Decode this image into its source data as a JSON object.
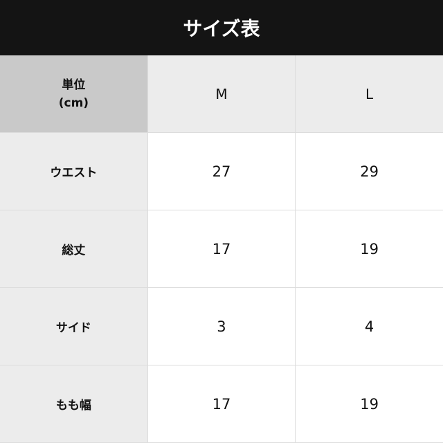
{
  "title": "サイズ表",
  "table": {
    "unit_label": "単位",
    "unit": "(cm)",
    "columns": [
      "M",
      "L"
    ],
    "rows": [
      {
        "label": "ウエスト",
        "values": [
          "27",
          "29"
        ]
      },
      {
        "label": "総丈",
        "values": [
          "17",
          "19"
        ]
      },
      {
        "label": "サイド",
        "values": [
          "3",
          "4"
        ]
      },
      {
        "label": "もも幅",
        "values": [
          "17",
          "19"
        ]
      }
    ]
  }
}
